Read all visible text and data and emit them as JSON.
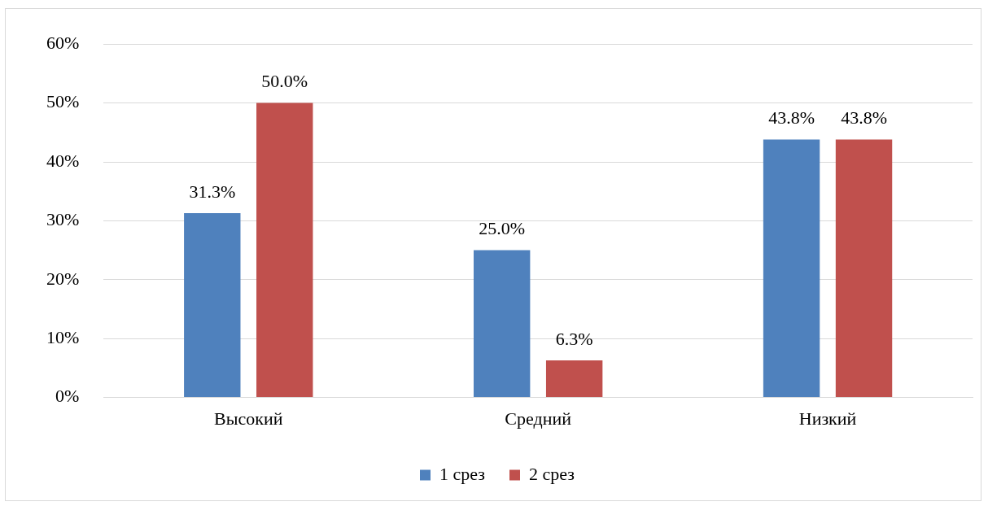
{
  "chart_data": {
    "type": "bar",
    "categories": [
      "Высокий",
      "Средний",
      "Низкий"
    ],
    "series": [
      {
        "name": "1 срез",
        "color": "#4f81bd",
        "values": [
          31.3,
          25.0,
          43.8
        ],
        "value_labels": [
          "31.3%",
          "25.0%",
          "43.8%"
        ]
      },
      {
        "name": "2 срез",
        "color": "#c0504d",
        "values": [
          50.0,
          6.3,
          43.8
        ],
        "value_labels": [
          "50.0%",
          "6.3%",
          "43.8%"
        ]
      }
    ],
    "ylim": [
      0,
      60
    ],
    "yticks": [
      {
        "value": 0,
        "label": "0%"
      },
      {
        "value": 10,
        "label": "10%"
      },
      {
        "value": 20,
        "label": "20%"
      },
      {
        "value": 30,
        "label": "30%"
      },
      {
        "value": 40,
        "label": "40%"
      },
      {
        "value": 50,
        "label": "50%"
      },
      {
        "value": 60,
        "label": "60%"
      }
    ],
    "grid": "y",
    "legend": "bottom"
  }
}
